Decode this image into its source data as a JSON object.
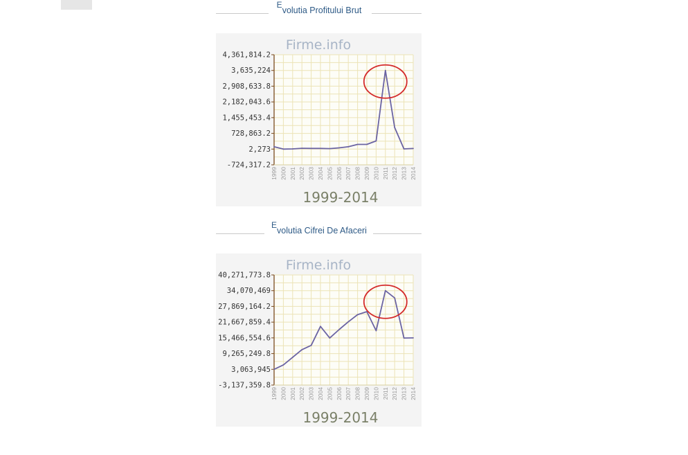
{
  "colors": {
    "line": "#6b64a3",
    "grid": "#ece3b6",
    "axis": "#7a4b1e",
    "annotation": "#d42a2a",
    "title": "#2e5a86",
    "watermark": "#a7b4c6",
    "range": "#7a8068"
  },
  "sections": [
    {
      "title_initial": "E",
      "title_rest": "volutia Profitului Brut"
    },
    {
      "title_initial": "E",
      "title_rest": "volutia Cifrei De Afaceri"
    }
  ],
  "chart_data": [
    {
      "type": "line",
      "watermark": "Firme.info",
      "range_label": "1999-2014",
      "x": [
        "1999",
        "2000",
        "2001",
        "2002",
        "2003",
        "2004",
        "2005",
        "2006",
        "2007",
        "2008",
        "2009",
        "2010",
        "2011",
        "2012",
        "2013",
        "2014"
      ],
      "yticks": [
        "4,361,814.2",
        "3,635,224",
        "2,908,633.8",
        "2,182,043.6",
        "1,455,453.4",
        "728,863.2",
        "2,273",
        "-724,317.2"
      ],
      "ylim": [
        -724317.2,
        4361814.2
      ],
      "grid": true,
      "series": [
        {
          "values": [
            110000,
            2273,
            10000,
            40000,
            35000,
            35000,
            25000,
            60000,
            110000,
            220000,
            220000,
            380000,
            3635224,
            1000000,
            10000,
            30000
          ]
        }
      ],
      "annotation": {
        "x": "2011",
        "shape": "ellipse"
      }
    },
    {
      "type": "line",
      "watermark": "Firme.info",
      "range_label": "1999-2014",
      "x": [
        "1999",
        "2000",
        "2001",
        "2002",
        "2003",
        "2004",
        "2005",
        "2006",
        "2007",
        "2008",
        "2009",
        "2010",
        "2011",
        "2012",
        "2013",
        "2014"
      ],
      "yticks": [
        "40,271,773.8",
        "34,070,469",
        "27,869,164.2",
        "21,667,859.4",
        "15,466,554.6",
        "9,265,249.8",
        "3,063,945",
        "-3,137,359.8"
      ],
      "ylim": [
        -3137359.8,
        40271773.8
      ],
      "grid": true,
      "series": [
        {
          "values": [
            3063945,
            4800000,
            7800000,
            10800000,
            12500000,
            20000000,
            15400000,
            18700000,
            21800000,
            24600000,
            25800000,
            18300000,
            34070469,
            31200000,
            15400000,
            15466554.6
          ]
        }
      ],
      "annotation": {
        "x": "2011",
        "shape": "ellipse"
      }
    }
  ]
}
